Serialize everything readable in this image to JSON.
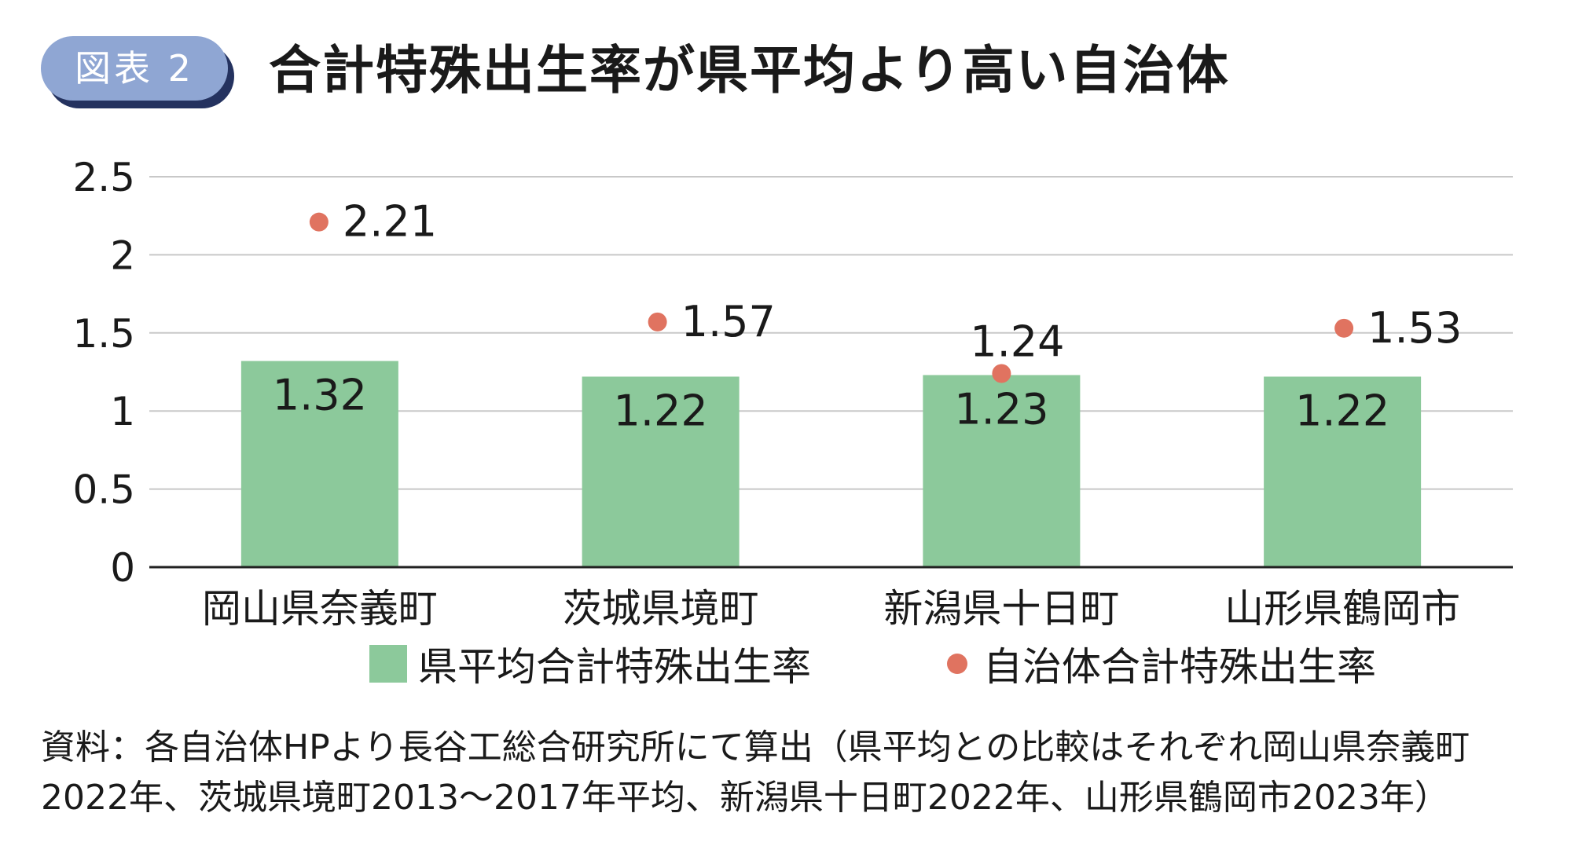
{
  "header": {
    "badge": "図表 2",
    "title": "合計特殊出生率が県平均より高い自治体"
  },
  "colors": {
    "bar": "#8cc99b",
    "dot": "#e07360",
    "grid": "#c8c8c8",
    "axis": "#222222",
    "badge": "#8fa6d3"
  },
  "chart_data": {
    "type": "bar",
    "categories": [
      "岡山県奈義町",
      "茨城県境町",
      "新潟県十日町",
      "山形県鶴岡市"
    ],
    "series": [
      {
        "name": "県平均合計特殊出生率",
        "type": "bar",
        "values": [
          1.32,
          1.22,
          1.23,
          1.22
        ],
        "labels": [
          "1.32",
          "1.22",
          "1.23",
          "1.22"
        ]
      },
      {
        "name": "自治体合計特殊出生率",
        "type": "scatter",
        "values": [
          2.21,
          1.57,
          1.24,
          1.53
        ],
        "labels": [
          "2.21",
          "1.57",
          "1.24",
          "1.53"
        ]
      }
    ],
    "ylim": [
      0,
      2.5
    ],
    "yticks": [
      0,
      0.5,
      1,
      1.5,
      2,
      2.5
    ],
    "ytick_labels": [
      "0",
      "0.5",
      "1",
      "1.5",
      "2",
      "2.5"
    ],
    "grid": true,
    "legend_position": "bottom"
  },
  "legend": {
    "bar_label": "県平均合計特殊出生率",
    "dot_label": "自治体合計特殊出生率"
  },
  "note": {
    "line1": "資料：各自治体HPより長谷工総合研究所にて算出（県平均との比較はそれぞれ岡山県奈義町",
    "line2": "2022年、茨城県境町2013～2017年平均、新潟県十日町2022年、山形県鶴岡市2023年）"
  }
}
